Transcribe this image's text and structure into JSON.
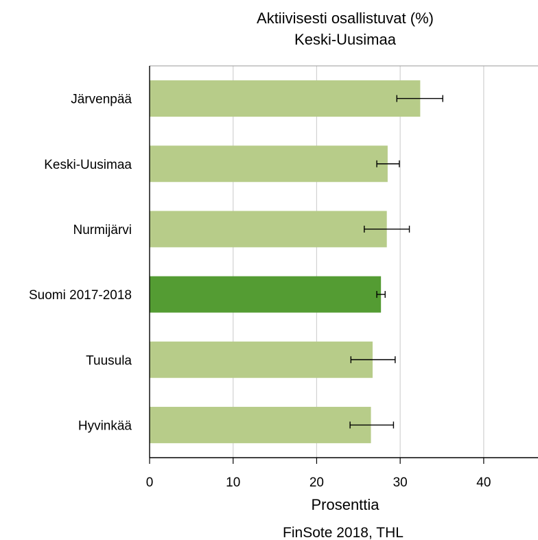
{
  "chart_data": {
    "type": "bar",
    "orientation": "horizontal",
    "title": "Aktiivisesti osallistuvat (%)",
    "subtitle": "Keski-Uusimaa",
    "xlabel": "Prosenttia",
    "ylabel": "",
    "source": "FinSote 2018, THL",
    "xlim": [
      0,
      46.5
    ],
    "xticks": [
      0,
      10,
      20,
      30,
      40
    ],
    "grid": true,
    "categories": [
      "Järvenpää",
      "Keski-Uusimaa",
      "Nurmijärvi",
      "Suomi 2017-2018",
      "Tuusula",
      "Hyvinkää"
    ],
    "values": [
      32.4,
      28.5,
      28.4,
      27.7,
      26.7,
      26.5
    ],
    "error_low": [
      29.6,
      27.2,
      25.7,
      27.2,
      24.1,
      24.0
    ],
    "error_high": [
      35.1,
      29.9,
      31.1,
      28.2,
      29.4,
      29.2
    ],
    "highlight": "Suomi 2017-2018",
    "colors": {
      "bar": "#b7cc89",
      "bar_highlight": "#549c33",
      "grid": "#d0d0d0",
      "axis": "#000000",
      "error": "#000000"
    }
  }
}
